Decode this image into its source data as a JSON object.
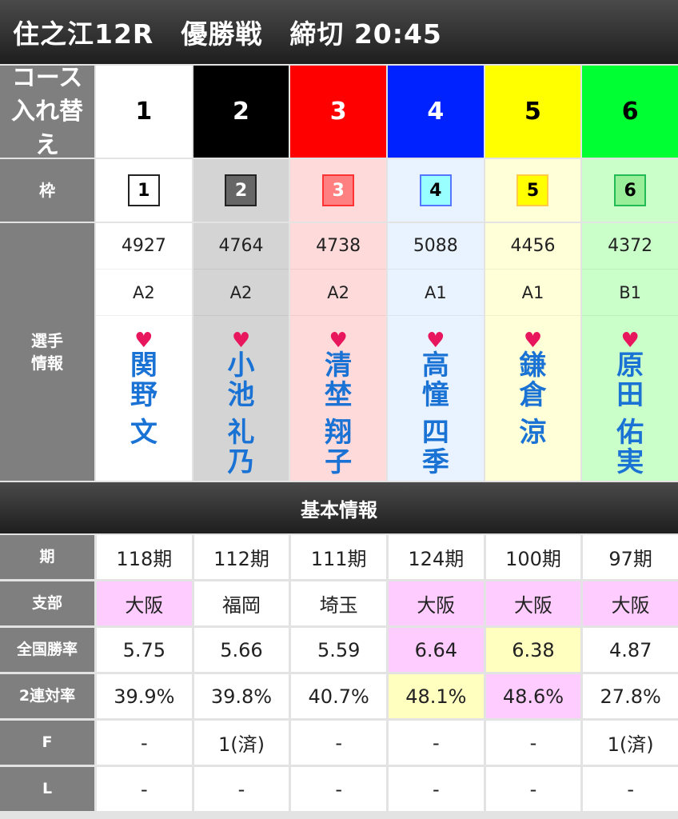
{
  "title": "住之江12R　優勝戦　締切 20:45",
  "labels": {
    "course": "コース\n入れ替え",
    "waku": "枠",
    "player": "選手\n情報",
    "section": "基本情報",
    "ki": "期",
    "branch": "支部",
    "national": "全国勝率",
    "rentai": "2連対率",
    "f": "F",
    "l": "L"
  },
  "colors": {
    "course_bg": [
      "#ffffff",
      "#000000",
      "#ff0000",
      "#0022ff",
      "#ffff00",
      "#00ff33"
    ],
    "course_fg": [
      "#000000",
      "#ffffff",
      "#ffffff",
      "#ffffff",
      "#000000",
      "#000000"
    ],
    "col_bg": [
      "#ffffff",
      "#d4d4d4",
      "#ffdada",
      "#e8f3ff",
      "#ffffd8",
      "#caffca"
    ],
    "waku_bg": [
      "#ffffff",
      "#666666",
      "#ff8080",
      "#99ffff",
      "#ffff00",
      "#99ee99"
    ],
    "waku_border": [
      "#222222",
      "#222222",
      "#ff3333",
      "#5577ff",
      "#ffcc44",
      "#22bb55"
    ],
    "waku_fg": [
      "#000000",
      "#ffffff",
      "#ffffff",
      "#000000",
      "#000000",
      "#000000"
    ],
    "pink": "#ffccff",
    "yellow": "#ffffc0"
  },
  "boats": [
    {
      "course": "1",
      "waku": "1",
      "reg": "4927",
      "cls": "A2",
      "sei": "関野",
      "mei": "文",
      "ki": "118期",
      "branch": "大阪",
      "national": "5.75",
      "rentai": "39.9%",
      "f": "-",
      "l": "-",
      "hl": {
        "branch": "pink"
      }
    },
    {
      "course": "2",
      "waku": "2",
      "reg": "4764",
      "cls": "A2",
      "sei": "小池",
      "mei": "礼乃",
      "ki": "112期",
      "branch": "福岡",
      "national": "5.66",
      "rentai": "39.8%",
      "f": "1(済)",
      "l": "-",
      "hl": {}
    },
    {
      "course": "3",
      "waku": "3",
      "reg": "4738",
      "cls": "A2",
      "sei": "清埜",
      "mei": "翔子",
      "ki": "111期",
      "branch": "埼玉",
      "national": "5.59",
      "rentai": "40.7%",
      "f": "-",
      "l": "-",
      "hl": {}
    },
    {
      "course": "4",
      "waku": "4",
      "reg": "5088",
      "cls": "A1",
      "sei": "高憧",
      "mei": "四季",
      "ki": "124期",
      "branch": "大阪",
      "national": "6.64",
      "rentai": "48.1%",
      "f": "-",
      "l": "-",
      "hl": {
        "branch": "pink",
        "national": "pink",
        "rentai": "yellow"
      }
    },
    {
      "course": "5",
      "waku": "5",
      "reg": "4456",
      "cls": "A1",
      "sei": "鎌倉",
      "mei": "涼",
      "ki": "100期",
      "branch": "大阪",
      "national": "6.38",
      "rentai": "48.6%",
      "f": "-",
      "l": "-",
      "hl": {
        "branch": "pink",
        "national": "yellow",
        "rentai": "pink"
      }
    },
    {
      "course": "6",
      "waku": "6",
      "reg": "4372",
      "cls": "B1",
      "sei": "原田",
      "mei": "佑実",
      "ki": "97期",
      "branch": "大阪",
      "national": "4.87",
      "rentai": "27.8%",
      "f": "1(済)",
      "l": "-",
      "hl": {
        "branch": "pink"
      }
    }
  ]
}
